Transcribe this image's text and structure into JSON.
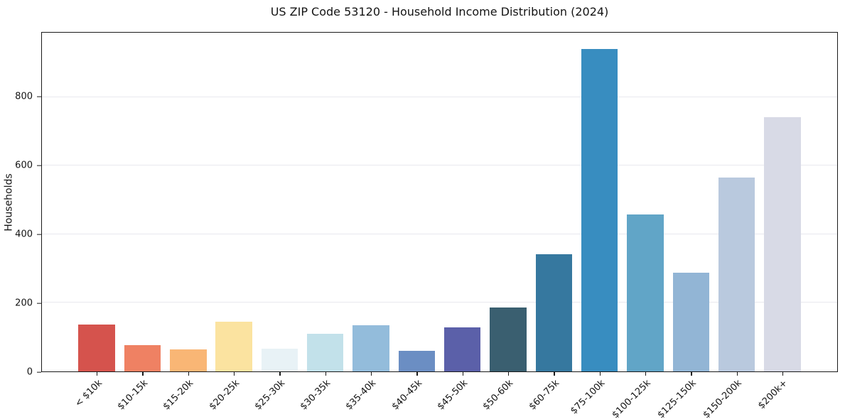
{
  "title": "US ZIP Code 53120 - Household Income Distribution (2024)",
  "chart_data": {
    "type": "bar",
    "title": "US ZIP Code 53120 - Household Income Distribution (2024)",
    "xlabel": "",
    "ylabel": "Households",
    "categories": [
      "< $10k",
      "$10-15k",
      "$15-20k",
      "$20-25k",
      "$25-30k",
      "$30-35k",
      "$35-40k",
      "$40-45k",
      "$45-50k",
      "$50-60k",
      "$60-75k",
      "$75-100k",
      "$100-125k",
      "$125-150k",
      "$150-200k",
      "$200k+"
    ],
    "values": [
      136,
      77,
      65,
      145,
      67,
      109,
      134,
      61,
      128,
      186,
      341,
      941,
      458,
      287,
      566,
      741
    ],
    "bar_colors": [
      "#d5534d",
      "#ef8163",
      "#f9b675",
      "#fbe3a0",
      "#e8f2f6",
      "#c2e1ea",
      "#93bcdb",
      "#6b8ec3",
      "#5b60a9",
      "#3a5f70",
      "#36789f",
      "#388dc0",
      "#61a5c7",
      "#92b5d5",
      "#b9c9de",
      "#d8dae6"
    ],
    "ylim": [
      0,
      988
    ],
    "yticks": [
      0,
      200,
      400,
      600,
      800
    ],
    "grid": "horizontal",
    "gridline_color": "#e9e9ee",
    "legend_position": "none",
    "x_tick_rotation": 45,
    "bar_width_fraction": 0.8
  },
  "colors": {
    "background": "#ffffff",
    "spine": "#1a1a1a",
    "text": "#141414"
  }
}
